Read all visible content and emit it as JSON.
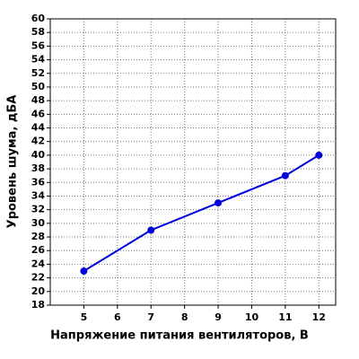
{
  "chart_data": {
    "type": "line",
    "x_label": "Напряжение питания вентиляторов, В",
    "y_label": "Уровень шума, дБА",
    "x": [
      5,
      7,
      9,
      11,
      12
    ],
    "series": [
      {
        "color": "#0000dd",
        "values": [
          23,
          29,
          33,
          37,
          40
        ]
      }
    ],
    "xlim": [
      4,
      12.5
    ],
    "xticks": [
      5,
      6,
      7,
      8,
      9,
      10,
      11,
      12
    ],
    "ylim": [
      18,
      60
    ],
    "yticks": [
      18,
      20,
      22,
      24,
      26,
      28,
      30,
      32,
      34,
      36,
      38,
      40,
      42,
      44,
      46,
      48,
      50,
      52,
      54,
      56,
      58,
      60
    ],
    "grid": true
  }
}
